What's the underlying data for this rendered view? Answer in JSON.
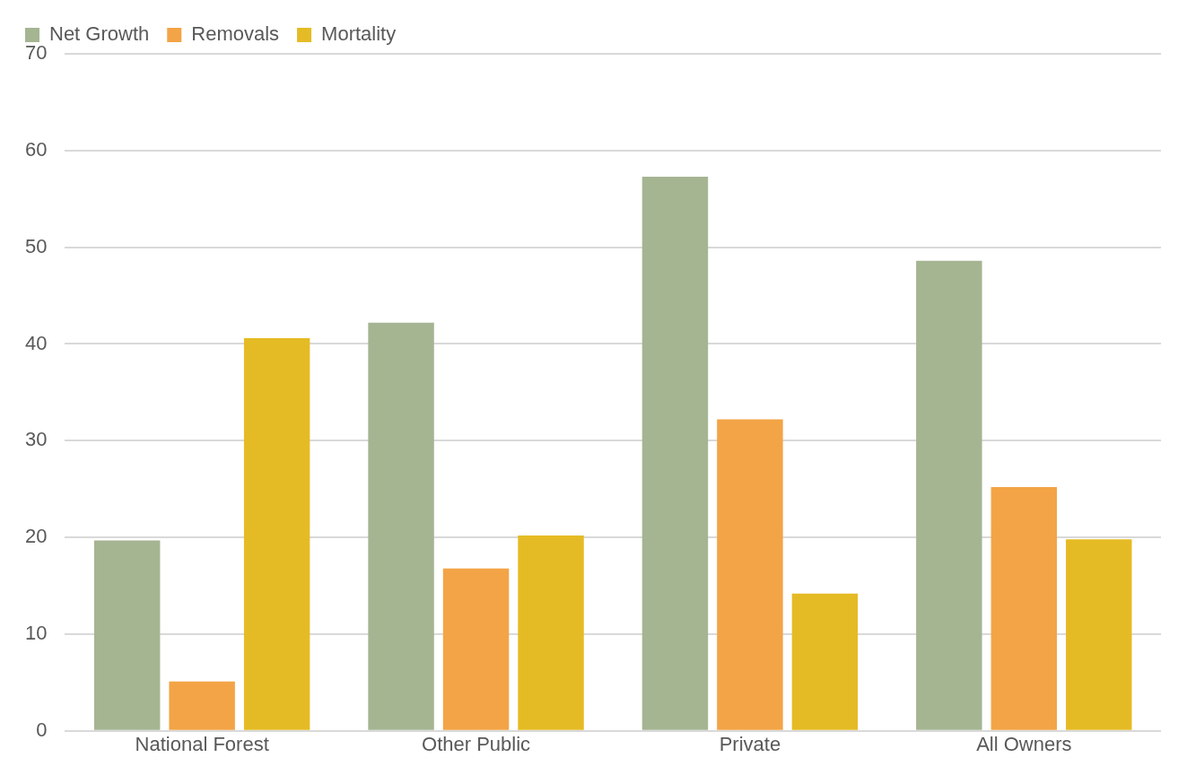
{
  "chart_data": {
    "type": "bar",
    "categories": [
      "National Forest",
      "Other Public",
      "Private",
      "All Owners"
    ],
    "series": [
      {
        "name": "Net Growth",
        "color": "#a5b592",
        "values": [
          19.7,
          42.2,
          57.3,
          48.6
        ]
      },
      {
        "name": "Removals",
        "color": "#f3a446",
        "values": [
          5.1,
          16.8,
          32.2,
          25.2
        ]
      },
      {
        "name": "Mortality",
        "color": "#e5bb25",
        "values": [
          40.6,
          20.2,
          14.2,
          19.8
        ]
      }
    ],
    "ylim": [
      0,
      70
    ],
    "yticks": [
      0,
      10,
      20,
      30,
      40,
      50,
      60,
      70
    ],
    "grid": "y",
    "legend": "top left"
  }
}
